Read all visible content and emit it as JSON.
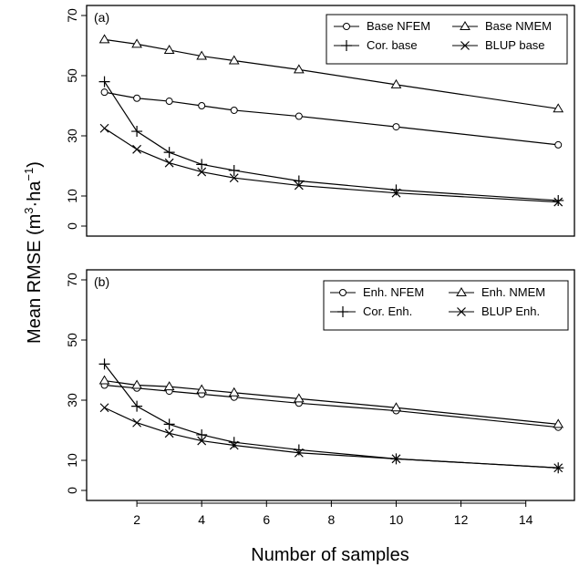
{
  "chart_data": [
    {
      "type": "line",
      "panel_tag": "(a)",
      "x": [
        1,
        2,
        3,
        4,
        5,
        7,
        10,
        15
      ],
      "ylim": [
        0,
        70
      ],
      "yticks": [
        0,
        10,
        30,
        50,
        70
      ],
      "legend_position": "top-right",
      "series": [
        {
          "name": "Base NFEM",
          "marker": "circle",
          "values": [
            44.5,
            42.5,
            41.5,
            40.0,
            38.5,
            36.5,
            33.0,
            27.0
          ]
        },
        {
          "name": "Base NMEM",
          "marker": "triangle",
          "values": [
            62.0,
            60.5,
            58.5,
            56.5,
            55.0,
            52.0,
            47.0,
            39.0
          ]
        },
        {
          "name": "Cor. base",
          "marker": "plus",
          "values": [
            48.0,
            31.5,
            24.5,
            20.5,
            18.5,
            15.0,
            12.0,
            8.5
          ]
        },
        {
          "name": "BLUP base",
          "marker": "cross",
          "values": [
            32.5,
            25.5,
            21.0,
            18.0,
            16.0,
            13.5,
            11.0,
            8.0
          ]
        }
      ]
    },
    {
      "type": "line",
      "panel_tag": "(b)",
      "x": [
        1,
        2,
        3,
        4,
        5,
        7,
        10,
        15
      ],
      "ylim": [
        0,
        70
      ],
      "yticks": [
        0,
        10,
        30,
        50,
        70
      ],
      "legend_position": "top-right",
      "series": [
        {
          "name": "Enh. NFEM",
          "marker": "circle",
          "values": [
            35.0,
            34.0,
            33.0,
            32.0,
            31.0,
            29.0,
            26.5,
            21.0
          ]
        },
        {
          "name": "Enh. NMEM",
          "marker": "triangle",
          "values": [
            36.5,
            35.0,
            34.5,
            33.5,
            32.5,
            30.5,
            27.5,
            22.0
          ]
        },
        {
          "name": "Cor. Enh.",
          "marker": "plus",
          "values": [
            42.0,
            28.0,
            22.0,
            18.5,
            16.0,
            13.5,
            10.5,
            7.5
          ]
        },
        {
          "name": "BLUP Enh.",
          "marker": "cross",
          "values": [
            27.5,
            22.5,
            19.0,
            16.5,
            15.0,
            12.5,
            10.5,
            7.5
          ]
        }
      ]
    }
  ],
  "shared": {
    "xlabel": "Number of samples",
    "ylabel_main": "Mean RMSE (m",
    "ylabel_sup1": "3",
    "ylabel_mid": "·ha",
    "ylabel_sup2": "−1",
    "ylabel_end": ")",
    "xticks": [
      2,
      4,
      6,
      8,
      10,
      12,
      14
    ],
    "xlim": [
      0.45,
      15.5
    ]
  }
}
